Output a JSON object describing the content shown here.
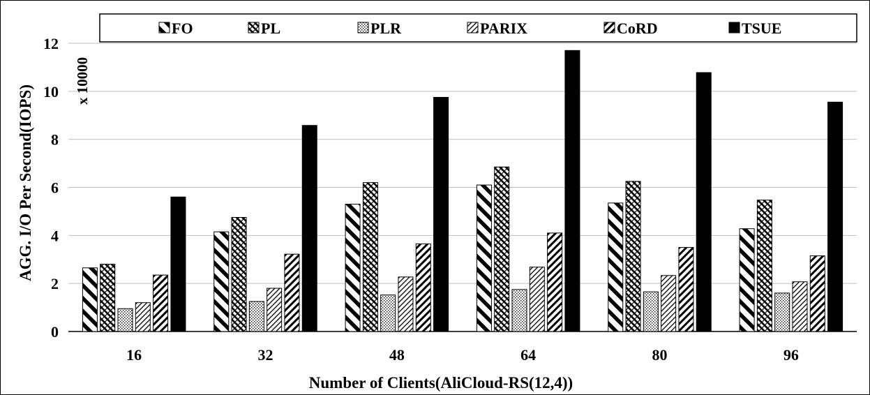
{
  "chart_data": {
    "type": "bar",
    "title": "",
    "xlabel": "Number of Clients(AliCloud-RS(12,4))",
    "ylabel": "AGG. I/O Per Second(IOPS)",
    "y_multiplier_label": "x 10000",
    "ylim": [
      0,
      12
    ],
    "yticks": [
      "0",
      "2",
      "4",
      "6",
      "8",
      "10",
      "12"
    ],
    "grid": "horizontal",
    "legend_position": "top",
    "categories": [
      "16",
      "32",
      "48",
      "64",
      "80",
      "96"
    ],
    "series": [
      {
        "name": "FO",
        "pattern": "diag-back-wide",
        "values": [
          2.65,
          4.15,
          5.3,
          6.1,
          5.35,
          4.28
        ]
      },
      {
        "name": "PL",
        "pattern": "cross-dense",
        "values": [
          2.8,
          4.75,
          6.2,
          6.85,
          6.25,
          5.47
        ]
      },
      {
        "name": "PLR",
        "pattern": "dotted",
        "values": [
          0.95,
          1.25,
          1.52,
          1.75,
          1.65,
          1.6
        ]
      },
      {
        "name": "PARIX",
        "pattern": "diag-fwd-thin",
        "values": [
          1.2,
          1.8,
          2.27,
          2.68,
          2.33,
          2.07
        ]
      },
      {
        "name": "CoRD",
        "pattern": "diag-fwd-wide",
        "values": [
          2.35,
          3.22,
          3.65,
          4.1,
          3.5,
          3.15
        ]
      },
      {
        "name": "TSUE",
        "pattern": "solid",
        "values": [
          5.6,
          8.58,
          9.75,
          11.7,
          10.78,
          9.55
        ]
      }
    ]
  }
}
